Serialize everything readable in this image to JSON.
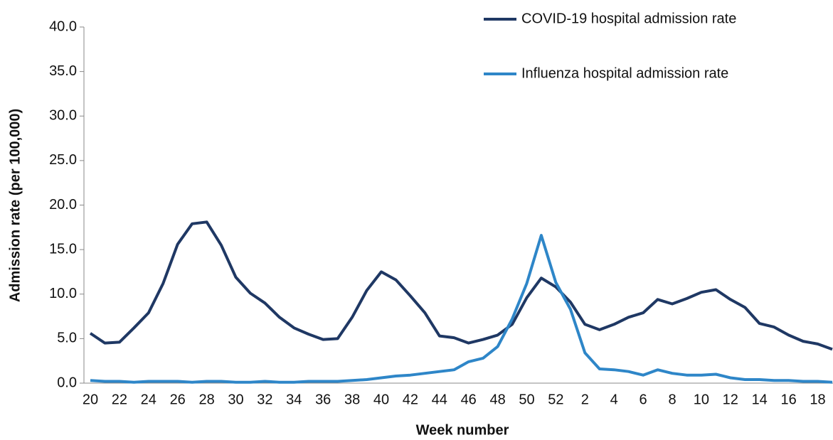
{
  "chart_data": {
    "type": "line",
    "x_label": "Week number",
    "y_label": "Admission rate (per 100,000)",
    "categories": [
      20,
      null,
      22,
      null,
      24,
      null,
      26,
      null,
      28,
      null,
      30,
      null,
      32,
      null,
      34,
      null,
      36,
      null,
      38,
      null,
      40,
      null,
      42,
      null,
      44,
      null,
      46,
      null,
      48,
      null,
      50,
      null,
      52,
      null,
      2,
      null,
      4,
      null,
      6,
      null,
      8,
      null,
      10,
      null,
      12,
      null,
      14,
      null,
      16,
      null,
      18,
      null
    ],
    "series": [
      {
        "name": "COVID-19 hospital admission rate",
        "color": "#1f3864",
        "values": [
          5.6,
          4.5,
          4.6,
          6.2,
          7.9,
          11.2,
          15.6,
          17.9,
          18.1,
          15.5,
          11.9,
          10.1,
          9.0,
          7.4,
          6.2,
          5.5,
          4.9,
          5.0,
          7.4,
          10.4,
          12.5,
          11.6,
          9.8,
          7.9,
          5.3,
          5.1,
          4.5,
          4.9,
          5.4,
          6.6,
          9.6,
          11.8,
          10.8,
          9.1,
          6.6,
          6.0,
          6.6,
          7.4,
          7.9,
          9.4,
          8.9,
          9.5,
          10.2,
          10.5,
          9.4,
          8.5,
          6.7,
          6.3,
          5.4,
          4.7,
          4.4,
          3.8
        ]
      },
      {
        "name": "Influenza hospital admission rate",
        "color": "#2e86c8",
        "values": [
          0.3,
          0.2,
          0.2,
          0.1,
          0.2,
          0.2,
          0.2,
          0.1,
          0.2,
          0.2,
          0.1,
          0.1,
          0.2,
          0.1,
          0.1,
          0.2,
          0.2,
          0.2,
          0.3,
          0.4,
          0.6,
          0.8,
          0.9,
          1.1,
          1.3,
          1.5,
          2.4,
          2.8,
          4.1,
          7.2,
          11.2,
          16.6,
          11.3,
          8.3,
          3.4,
          1.6,
          1.5,
          1.3,
          0.9,
          1.5,
          1.1,
          0.9,
          0.9,
          1.0,
          0.6,
          0.4,
          0.4,
          0.3,
          0.3,
          0.2,
          0.2,
          0.1
        ]
      }
    ],
    "ylim": [
      0,
      40
    ],
    "yticks": [
      {
        "value": 0,
        "label": "0.0"
      },
      {
        "value": 5,
        "label": "5.0"
      },
      {
        "value": 10,
        "label": "10.0"
      },
      {
        "value": 15,
        "label": "15.0"
      },
      {
        "value": 20,
        "label": "20.0"
      },
      {
        "value": 25,
        "label": "25.0"
      },
      {
        "value": 30,
        "label": "30.0"
      },
      {
        "value": 35,
        "label": "35.0"
      },
      {
        "value": 40,
        "label": "40.0"
      }
    ],
    "legend": "top-right"
  }
}
